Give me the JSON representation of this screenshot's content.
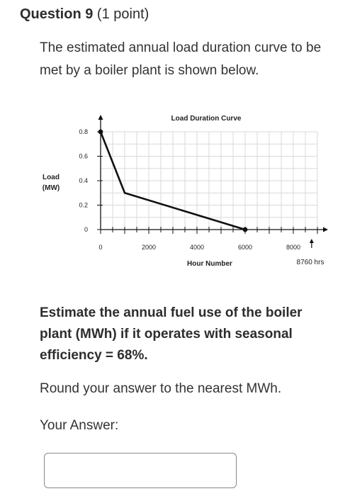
{
  "question": {
    "title": "Question 9",
    "points": "(1 point)",
    "prompt": "The estimated annual load duration curve to be met by a boiler plant is shown below.",
    "task": "Estimate the annual fuel use of the boiler plant (MWh) if it operates with seasonal efficiency = 68%.",
    "rounding": "Round your answer to the nearest MWh.",
    "answer_label": "Your Answer:",
    "answer_value": ""
  },
  "chart_data": {
    "type": "line",
    "title": "Load Duration Curve",
    "xlabel": "Hour Number",
    "ylabel_line1": "Load",
    "ylabel_line2": "(MW)",
    "x_end_label": "8760 hrs",
    "xlim": [
      0,
      9000
    ],
    "ylim": [
      0,
      0.8
    ],
    "x_ticks": [
      0,
      2000,
      4000,
      6000,
      8000
    ],
    "y_ticks": [
      0,
      0.2,
      0.4,
      0.6,
      0.8
    ],
    "x_tick_labels": [
      "0",
      "2000",
      "4000",
      "6000",
      "8000"
    ],
    "y_tick_labels": [
      "0",
      "0.2",
      "0.4",
      "0.6",
      "0.8"
    ],
    "grid": true,
    "series": [
      {
        "x": [
          0,
          1000,
          6000
        ],
        "y": [
          0.8,
          0.3,
          0
        ]
      }
    ],
    "line_color": "#111111",
    "grid_color": "#d9d9d9"
  }
}
